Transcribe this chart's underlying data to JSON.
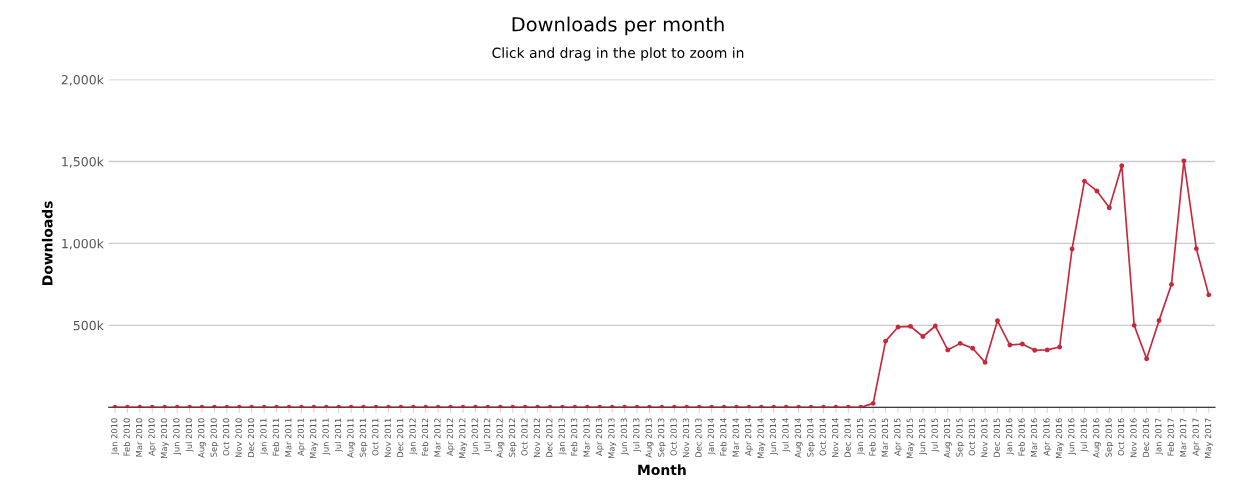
{
  "chart_data": {
    "type": "line",
    "title": "Downloads per month",
    "subtitle": "Click and drag in the plot to zoom in",
    "xlabel": "Month",
    "ylabel": "Downloads",
    "categories": [
      "Jan 2010",
      "Feb 2010",
      "Mar 2010",
      "Apr 2010",
      "May 2010",
      "Jun 2010",
      "Jul 2010",
      "Aug 2010",
      "Sep 2010",
      "Oct 2010",
      "Nov 2010",
      "Dec 2010",
      "Jan 2011",
      "Feb 2011",
      "Mar 2011",
      "Apr 2011",
      "May 2011",
      "Jun 2011",
      "Jul 2011",
      "Aug 2011",
      "Sep 2011",
      "Oct 2011",
      "Nov 2011",
      "Dec 2011",
      "Jan 2012",
      "Feb 2012",
      "Mar 2012",
      "Apr 2012",
      "May 2012",
      "Jun 2012",
      "Jul 2012",
      "Aug 2012",
      "Sep 2012",
      "Oct 2012",
      "Nov 2012",
      "Dec 2012",
      "Jan 2013",
      "Feb 2013",
      "Mar 2013",
      "Apr 2013",
      "May 2013",
      "Jun 2013",
      "Jul 2013",
      "Aug 2013",
      "Sep 2013",
      "Oct 2013",
      "Nov 2013",
      "Dec 2013",
      "Jan 2014",
      "Feb 2014",
      "Mar 2014",
      "Apr 2014",
      "May 2014",
      "Jun 2014",
      "Jul 2014",
      "Aug 2014",
      "Sep 2014",
      "Oct 2014",
      "Nov 2014",
      "Dec 2014",
      "Jan 2015",
      "Feb 2015",
      "Mar 2015",
      "Apr 2015",
      "May 2015",
      "Jun 2015",
      "Jul 2015",
      "Aug 2015",
      "Sep 2015",
      "Oct 2015",
      "Nov 2015",
      "Dec 2015",
      "Jan 2016",
      "Feb 2016",
      "Mar 2016",
      "Apr 2016",
      "May 2016",
      "Jun 2016",
      "Jul 2016",
      "Aug 2016",
      "Sep 2016",
      "Oct 2016",
      "Nov 2016",
      "Dec 2016",
      "Jan 2017",
      "Feb 2017",
      "Mar 2017",
      "Apr 2017",
      "May 2017"
    ],
    "series": [
      {
        "color": "#c8283c",
        "values": [
          0,
          0,
          0,
          0,
          0,
          0,
          0,
          0,
          0,
          0,
          0,
          0,
          0,
          0,
          0,
          0,
          0,
          0,
          0,
          0,
          0,
          0,
          0,
          0,
          0,
          0,
          0,
          0,
          0,
          0,
          0,
          0,
          0,
          0,
          0,
          0,
          0,
          0,
          0,
          0,
          0,
          0,
          0,
          0,
          0,
          0,
          0,
          0,
          0,
          0,
          0,
          0,
          0,
          0,
          0,
          0,
          0,
          0,
          0,
          0,
          0,
          24000,
          404000,
          490000,
          494000,
          432000,
          496000,
          350000,
          390000,
          360000,
          274000,
          528000,
          380000,
          386000,
          348000,
          350000,
          368000,
          966000,
          1380000,
          1320000,
          1218000,
          1474000,
          500000,
          296000,
          530000,
          750000,
          1504000,
          968000,
          686000
        ]
      }
    ],
    "ylim": [
      0,
      2000000
    ],
    "yticks": [
      {
        "value": 500000,
        "label": "500k"
      },
      {
        "value": 1000000,
        "label": "1,000k"
      },
      {
        "value": 1500000,
        "label": "1,500k"
      },
      {
        "value": 2000000,
        "label": "2,000k"
      }
    ],
    "grid": "y",
    "marker": "circle",
    "line_style": "solid"
  }
}
